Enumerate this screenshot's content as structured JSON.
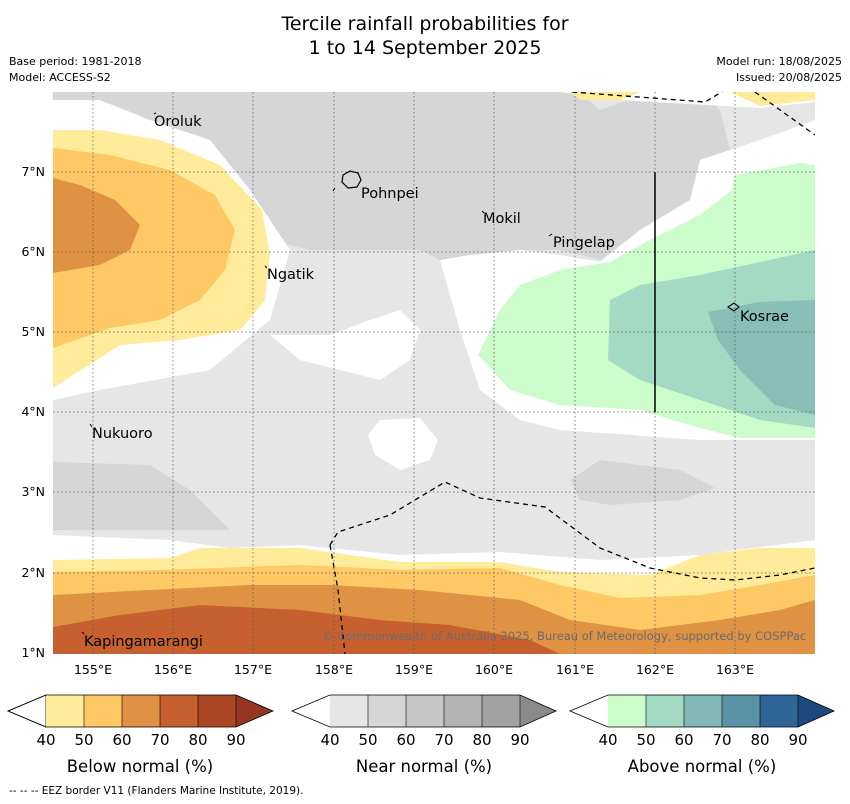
{
  "title_line1": "Tercile rainfall probabilities for",
  "title_line2": "1 to 14 September 2025",
  "meta_left": {
    "base_period": "Base period: 1981-2018",
    "model": "Model: ACCESS-S2"
  },
  "meta_right": {
    "model_run": "Model run: 18/08/2025",
    "issued": "Issued: 20/08/2025"
  },
  "map": {
    "places": {
      "oroluk": "Oroluk",
      "pohnpei": "Pohnpei",
      "mokil": "Mokil",
      "pingelap": "Pingelap",
      "ngatik": "Ngatik",
      "kosrae": "Kosrae",
      "nukuoro": "Nukuoro",
      "kapingamarangi": "Kapingamarangi"
    },
    "lat_labels": [
      "7°N",
      "6°N",
      "5°N",
      "4°N",
      "3°N",
      "2°N",
      "1°N"
    ],
    "lon_labels": [
      "155°E",
      "156°E",
      "157°E",
      "158°E",
      "159°E",
      "160°E",
      "161°E",
      "162°E",
      "163°E"
    ],
    "copyright": "© Commonwealth of Australia 2025, Bureau of Meteorology, supported by COSPPac"
  },
  "legends": [
    {
      "title": "Below normal (%)",
      "ticks": [
        "40",
        "50",
        "60",
        "70",
        "80",
        "90"
      ],
      "colors": [
        "#ffeb99",
        "#fec965",
        "#df9243",
        "#c6612f",
        "#ac4726",
        "#953622"
      ]
    },
    {
      "title": "Near normal (%)",
      "ticks": [
        "40",
        "50",
        "60",
        "70",
        "80",
        "90"
      ],
      "colors": [
        "#e6e6e6",
        "#d6d6d6",
        "#c6c6c6",
        "#b3b3b3",
        "#a2a2a2",
        "#8a8a8a"
      ]
    },
    {
      "title": "Above normal (%)",
      "ticks": [
        "40",
        "50",
        "60",
        "70",
        "80",
        "90"
      ],
      "colors": [
        "#ccfccc",
        "#a3dac3",
        "#82b8b3",
        "#5b93a6",
        "#2f6496",
        "#1d4a7e"
      ]
    }
  ],
  "footer": "--  --  -- EEZ border V11 (Flanders Marine Institute, 2019)."
}
